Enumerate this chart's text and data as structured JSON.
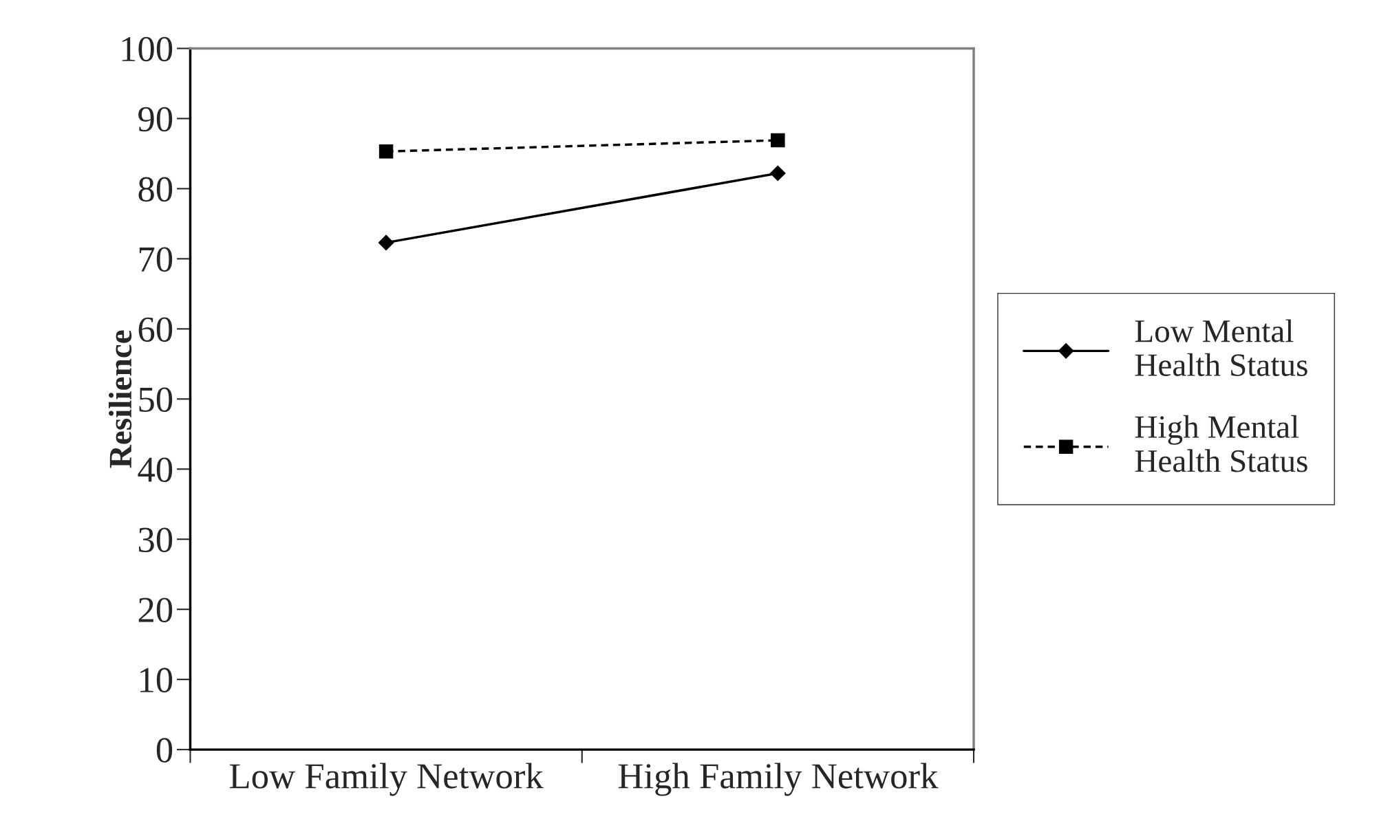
{
  "chart_data": {
    "type": "line",
    "ylabel": "Resilience",
    "categories": [
      "Low Family Network",
      "High Family Network"
    ],
    "series": [
      {
        "name": "Low Mental\nHealth Status",
        "color": "#000000",
        "values": [
          72.3,
          82.2
        ],
        "marker": "diamond",
        "line_style": "solid"
      },
      {
        "name": "High Mental\nHealth Status",
        "color": "#000000",
        "values": [
          85.3,
          86.9
        ],
        "marker": "square",
        "line_style": "dashed"
      }
    ],
    "ylim": [
      0,
      100
    ],
    "yticks": [
      0,
      10,
      20,
      30,
      40,
      50,
      60,
      70,
      80,
      90,
      100
    ],
    "grid": false,
    "legend": "right"
  }
}
